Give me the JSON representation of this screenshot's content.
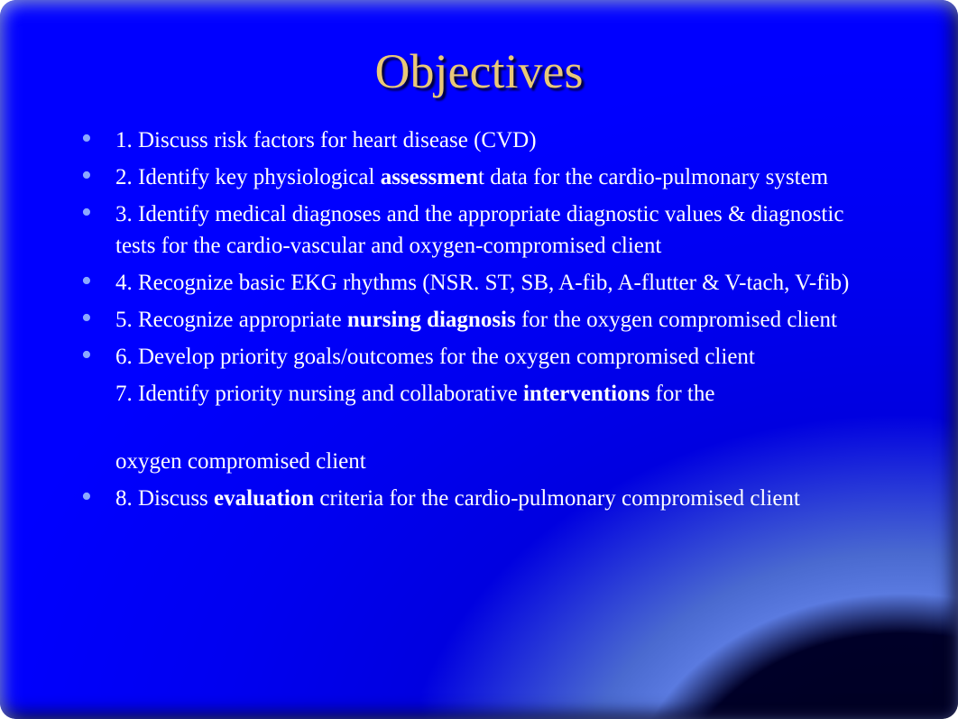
{
  "slide": {
    "title": "Objectives",
    "title_color": "#e8c878",
    "bullet_color": "#8aa8ff",
    "text_color": "#ffffff",
    "background_gradient": {
      "from": "#0000ff",
      "mid": "#5a7ae0",
      "to": "#000020"
    },
    "title_fontsize": 54,
    "body_fontsize": 25,
    "items": [
      {
        "bullet": true,
        "pre": "1. Discuss risk factors for heart disease (CVD)",
        "bold": "",
        "post": ""
      },
      {
        "bullet": true,
        "pre": "2. Identify key physiological ",
        "bold": "assessmen",
        "post": "t data for the cardio-pulmonary system"
      },
      {
        "bullet": true,
        "pre": "3. Identify medical diagnoses and the appropriate diagnostic values & diagnostic tests for the cardio-vascular and oxygen-compromised client",
        "bold": "",
        "post": ""
      },
      {
        "bullet": true,
        "pre": "4. Recognize basic EKG rhythms (NSR. ST, SB, A-fib, A-flutter & V-tach, V-fib)",
        "bold": "",
        "post": ""
      },
      {
        "bullet": true,
        "pre": "5. Recognize appropriate ",
        "bold": "nursing diagnosis",
        "post": " for the oxygen compromised client"
      },
      {
        "bullet": true,
        "pre": "6. Develop priority goals/outcomes for the oxygen compromised client",
        "bold": "",
        "post": ""
      },
      {
        "bullet": false,
        "pre": "7. Identify priority nursing and collaborative ",
        "bold": "interventions",
        "post": " for the"
      },
      {
        "continuation": true,
        "pre": " oxygen compromised client",
        "bold": "",
        "post": ""
      },
      {
        "bullet": true,
        "pre": "8. Discuss ",
        "bold": "evaluation",
        "post": " criteria for the cardio-pulmonary compromised client"
      }
    ]
  }
}
